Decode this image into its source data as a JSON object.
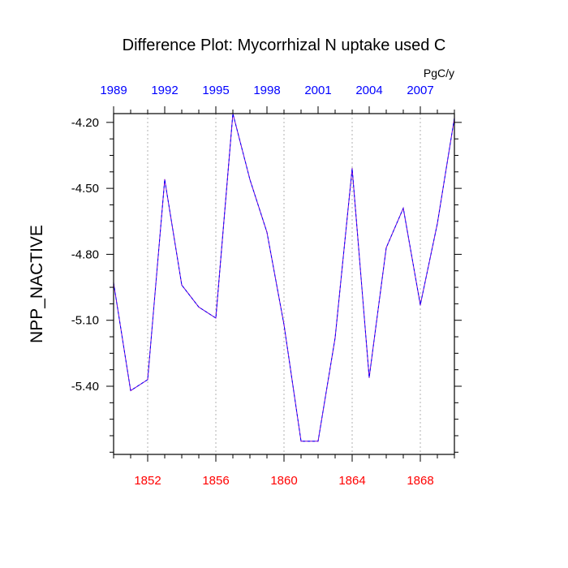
{
  "chart_data": {
    "type": "line",
    "title": "Difference Plot: Mycorrhizal N uptake used C",
    "units": "PgC/y",
    "ylabel": "NPP_NACTIVE",
    "xlabel": "",
    "x_bottom": {
      "range": [
        1850,
        1870
      ],
      "tick_values": [
        1852,
        1856,
        1860,
        1864,
        1868
      ],
      "tick_labels": [
        "1852",
        "1856",
        "1860",
        "1864",
        "1868"
      ],
      "color": "#ff0000"
    },
    "x_top": {
      "tick_labels": [
        "1989",
        "1992",
        "1995",
        "1998",
        "2001",
        "2004",
        "2007"
      ],
      "tick_positions_bottom_units": [
        1850,
        1853,
        1856,
        1859,
        1862,
        1865,
        1868
      ],
      "color": "#0000ff"
    },
    "ylim": [
      -5.71,
      -4.16
    ],
    "y_ticks": [
      -4.2,
      -4.5,
      -4.8,
      -5.1,
      -5.4
    ],
    "y_tick_labels": [
      "-4.20",
      "-4.50",
      "-4.80",
      "-5.10",
      "-5.40"
    ],
    "grid_x": true,
    "series": [
      {
        "name": "NPP_NACTIVE difference",
        "color": "#7a00cc",
        "dash_color": "#0000ff",
        "x": [
          1850,
          1851,
          1852,
          1853,
          1854,
          1855,
          1856,
          1857,
          1858,
          1859,
          1860,
          1861,
          1862,
          1863,
          1864,
          1865,
          1866,
          1867,
          1868,
          1869,
          1870
        ],
        "values": [
          -4.93,
          -5.42,
          -5.37,
          -4.46,
          -4.94,
          -5.04,
          -5.09,
          -4.16,
          -4.46,
          -4.7,
          -5.12,
          -5.65,
          -5.65,
          -5.18,
          -4.41,
          -5.36,
          -4.77,
          -4.59,
          -5.03,
          -4.66,
          -4.18
        ]
      }
    ]
  }
}
